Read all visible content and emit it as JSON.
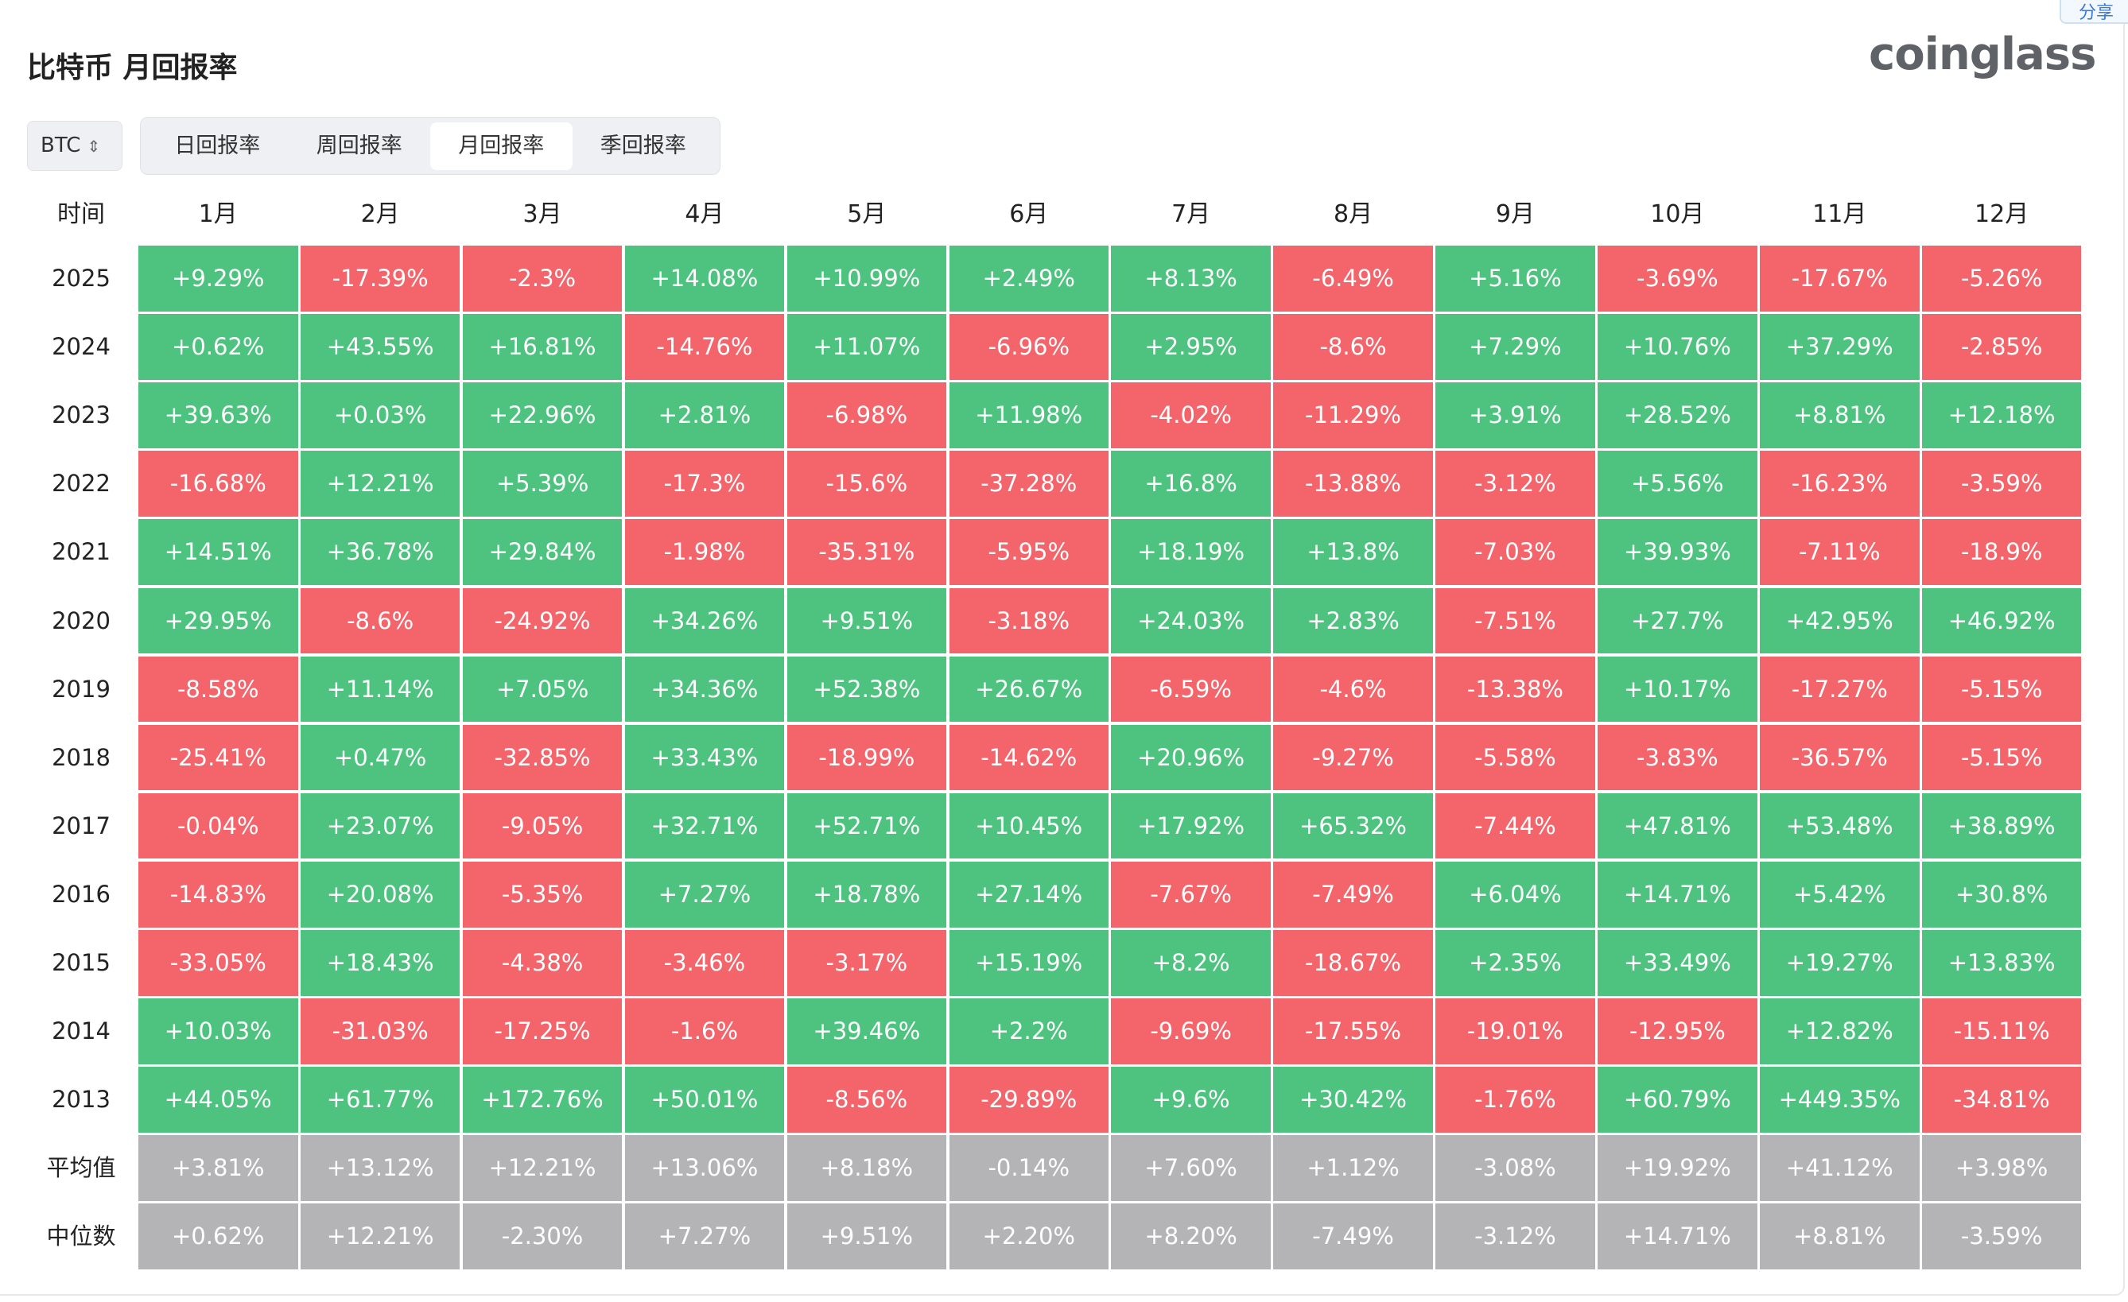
{
  "header": {
    "title": "比特币 月回报率",
    "brand": "coinglass",
    "share": "分享"
  },
  "controls": {
    "asset": "BTC",
    "tabs": [
      "日回报率",
      "周回报率",
      "月回报率",
      "季回报率"
    ],
    "active_tab": 2
  },
  "colors": {
    "up": "#4dc37f",
    "down": "#f3656b",
    "summary": "#b4b4b6"
  },
  "table": {
    "columns": [
      "时间",
      "1月",
      "2月",
      "3月",
      "4月",
      "5月",
      "6月",
      "7月",
      "8月",
      "9月",
      "10月",
      "11月",
      "12月"
    ],
    "rows": [
      [
        "2025",
        "+9.29%",
        "-17.39%",
        "-2.3%",
        "+14.08%",
        "+10.99%",
        "+2.49%",
        "+8.13%",
        "-6.49%",
        "+5.16%",
        "-3.69%",
        "-17.67%",
        "-5.26%"
      ],
      [
        "2024",
        "+0.62%",
        "+43.55%",
        "+16.81%",
        "-14.76%",
        "+11.07%",
        "-6.96%",
        "+2.95%",
        "-8.6%",
        "+7.29%",
        "+10.76%",
        "+37.29%",
        "-2.85%"
      ],
      [
        "2023",
        "+39.63%",
        "+0.03%",
        "+22.96%",
        "+2.81%",
        "-6.98%",
        "+11.98%",
        "-4.02%",
        "-11.29%",
        "+3.91%",
        "+28.52%",
        "+8.81%",
        "+12.18%"
      ],
      [
        "2022",
        "-16.68%",
        "+12.21%",
        "+5.39%",
        "-17.3%",
        "-15.6%",
        "-37.28%",
        "+16.8%",
        "-13.88%",
        "-3.12%",
        "+5.56%",
        "-16.23%",
        "-3.59%"
      ],
      [
        "2021",
        "+14.51%",
        "+36.78%",
        "+29.84%",
        "-1.98%",
        "-35.31%",
        "-5.95%",
        "+18.19%",
        "+13.8%",
        "-7.03%",
        "+39.93%",
        "-7.11%",
        "-18.9%"
      ],
      [
        "2020",
        "+29.95%",
        "-8.6%",
        "-24.92%",
        "+34.26%",
        "+9.51%",
        "-3.18%",
        "+24.03%",
        "+2.83%",
        "-7.51%",
        "+27.7%",
        "+42.95%",
        "+46.92%"
      ],
      [
        "2019",
        "-8.58%",
        "+11.14%",
        "+7.05%",
        "+34.36%",
        "+52.38%",
        "+26.67%",
        "-6.59%",
        "-4.6%",
        "-13.38%",
        "+10.17%",
        "-17.27%",
        "-5.15%"
      ],
      [
        "2018",
        "-25.41%",
        "+0.47%",
        "-32.85%",
        "+33.43%",
        "-18.99%",
        "-14.62%",
        "+20.96%",
        "-9.27%",
        "-5.58%",
        "-3.83%",
        "-36.57%",
        "-5.15%"
      ],
      [
        "2017",
        "-0.04%",
        "+23.07%",
        "-9.05%",
        "+32.71%",
        "+52.71%",
        "+10.45%",
        "+17.92%",
        "+65.32%",
        "-7.44%",
        "+47.81%",
        "+53.48%",
        "+38.89%"
      ],
      [
        "2016",
        "-14.83%",
        "+20.08%",
        "-5.35%",
        "+7.27%",
        "+18.78%",
        "+27.14%",
        "-7.67%",
        "-7.49%",
        "+6.04%",
        "+14.71%",
        "+5.42%",
        "+30.8%"
      ],
      [
        "2015",
        "-33.05%",
        "+18.43%",
        "-4.38%",
        "-3.46%",
        "-3.17%",
        "+15.19%",
        "+8.2%",
        "-18.67%",
        "+2.35%",
        "+33.49%",
        "+19.27%",
        "+13.83%"
      ],
      [
        "2014",
        "+10.03%",
        "-31.03%",
        "-17.25%",
        "-1.6%",
        "+39.46%",
        "+2.2%",
        "-9.69%",
        "-17.55%",
        "-19.01%",
        "-12.95%",
        "+12.82%",
        "-15.11%"
      ],
      [
        "2013",
        "+44.05%",
        "+61.77%",
        "+172.76%",
        "+50.01%",
        "-8.56%",
        "-29.89%",
        "+9.6%",
        "+30.42%",
        "-1.76%",
        "+60.79%",
        "+449.35%",
        "-34.81%"
      ]
    ],
    "summary_rows": [
      [
        "平均值",
        "+3.81%",
        "+13.12%",
        "+12.21%",
        "+13.06%",
        "+8.18%",
        "-0.14%",
        "+7.60%",
        "+1.12%",
        "-3.08%",
        "+19.92%",
        "+41.12%",
        "+3.98%"
      ],
      [
        "中位数",
        "+0.62%",
        "+12.21%",
        "-2.30%",
        "+7.27%",
        "+9.51%",
        "+2.20%",
        "+8.20%",
        "-7.49%",
        "-3.12%",
        "+14.71%",
        "+8.81%",
        "-3.59%"
      ]
    ]
  }
}
